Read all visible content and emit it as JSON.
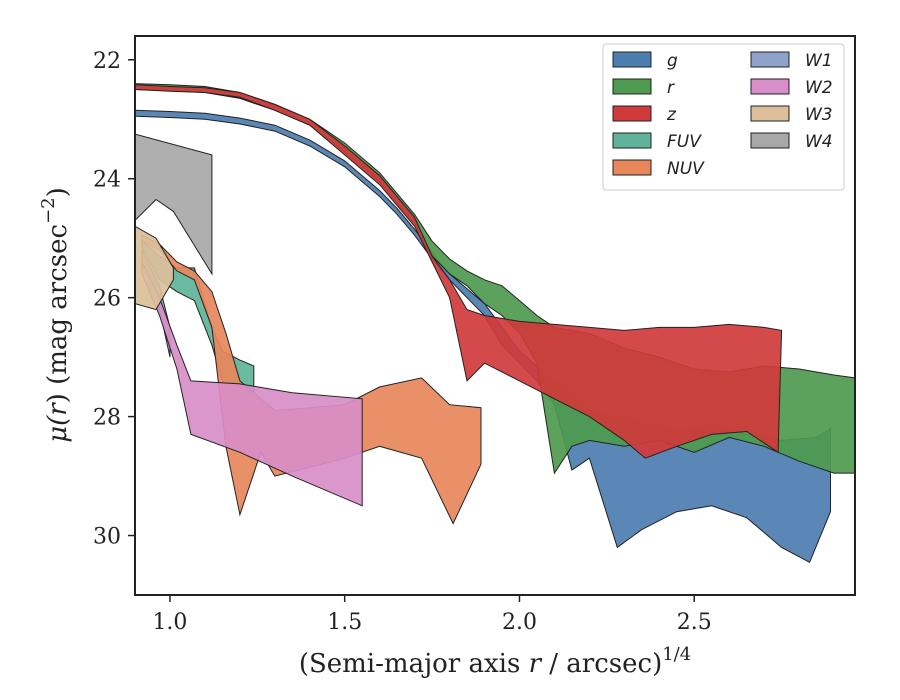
{
  "chart_data": {
    "type": "area",
    "xlabel": {
      "text": "(Semi-major axis ",
      "var": "r",
      "rest": " / arcsec)",
      "sup": "1/4"
    },
    "ylabel": {
      "mu": "μ(",
      "var": "r",
      "rest": ") (mag arcsec",
      "sup": "−2",
      "close": ")"
    },
    "xlim": [
      0.9,
      2.96
    ],
    "ylim": [
      31.0,
      21.6
    ],
    "y_inverted": true,
    "xticks": [
      1.0,
      1.5,
      2.0,
      2.5
    ],
    "xtick_labels": [
      "1.0",
      "1.5",
      "2.0",
      "2.5"
    ],
    "yticks": [
      22,
      24,
      26,
      28,
      30
    ],
    "ytick_labels": [
      "22",
      "24",
      "26",
      "28",
      "30"
    ],
    "legend_position": "top-right",
    "legend_columns": 2,
    "series": [
      {
        "name": "g",
        "color": "#4c7daf",
        "upper": [
          [
            0.9,
            22.85
          ],
          [
            1.0,
            22.87
          ],
          [
            1.1,
            22.9
          ],
          [
            1.2,
            22.98
          ],
          [
            1.3,
            23.1
          ],
          [
            1.4,
            23.35
          ],
          [
            1.5,
            23.7
          ],
          [
            1.6,
            24.2
          ],
          [
            1.65,
            24.5
          ],
          [
            1.7,
            24.85
          ],
          [
            1.75,
            25.25
          ],
          [
            1.8,
            25.6
          ],
          [
            1.85,
            25.85
          ],
          [
            1.9,
            26.1
          ],
          [
            1.95,
            26.5
          ],
          [
            2.0,
            26.9
          ],
          [
            2.05,
            27.15
          ],
          [
            2.1,
            27.4
          ],
          [
            2.15,
            27.6
          ],
          [
            2.2,
            27.9
          ],
          [
            2.28,
            28.0
          ],
          [
            2.35,
            28.1
          ],
          [
            2.45,
            28.25
          ],
          [
            2.55,
            28.15
          ],
          [
            2.65,
            28.3
          ],
          [
            2.75,
            28.4
          ],
          [
            2.85,
            28.35
          ],
          [
            2.89,
            28.2
          ]
        ],
        "lower": [
          [
            0.9,
            22.95
          ],
          [
            1.0,
            22.97
          ],
          [
            1.1,
            23.0
          ],
          [
            1.2,
            23.08
          ],
          [
            1.3,
            23.2
          ],
          [
            1.4,
            23.45
          ],
          [
            1.5,
            23.8
          ],
          [
            1.6,
            24.3
          ],
          [
            1.65,
            24.6
          ],
          [
            1.7,
            24.95
          ],
          [
            1.75,
            25.35
          ],
          [
            1.8,
            25.7
          ],
          [
            1.85,
            26.0
          ],
          [
            1.9,
            26.3
          ],
          [
            1.95,
            26.8
          ],
          [
            2.0,
            27.1
          ],
          [
            2.05,
            27.4
          ],
          [
            2.1,
            27.8
          ],
          [
            2.15,
            28.9
          ],
          [
            2.2,
            28.7
          ],
          [
            2.28,
            30.2
          ],
          [
            2.35,
            29.9
          ],
          [
            2.45,
            29.6
          ],
          [
            2.55,
            29.5
          ],
          [
            2.65,
            29.7
          ],
          [
            2.75,
            30.2
          ],
          [
            2.83,
            30.45
          ],
          [
            2.89,
            29.6
          ]
        ]
      },
      {
        "name": "r",
        "color": "#4e9a4e",
        "upper": [
          [
            0.9,
            22.4
          ],
          [
            1.0,
            22.42
          ],
          [
            1.1,
            22.45
          ],
          [
            1.2,
            22.55
          ],
          [
            1.3,
            22.75
          ],
          [
            1.4,
            23.0
          ],
          [
            1.5,
            23.4
          ],
          [
            1.6,
            23.9
          ],
          [
            1.65,
            24.25
          ],
          [
            1.7,
            24.6
          ],
          [
            1.75,
            25.05
          ],
          [
            1.8,
            25.35
          ],
          [
            1.85,
            25.55
          ],
          [
            1.9,
            25.7
          ],
          [
            1.95,
            25.8
          ],
          [
            2.0,
            26.05
          ],
          [
            2.05,
            26.3
          ],
          [
            2.1,
            26.5
          ],
          [
            2.2,
            26.6
          ],
          [
            2.3,
            26.85
          ],
          [
            2.4,
            27.0
          ],
          [
            2.5,
            27.2
          ],
          [
            2.6,
            27.25
          ],
          [
            2.7,
            27.15
          ],
          [
            2.8,
            27.2
          ],
          [
            2.9,
            27.3
          ],
          [
            2.96,
            27.35
          ]
        ],
        "lower": [
          [
            0.9,
            22.5
          ],
          [
            1.0,
            22.52
          ],
          [
            1.1,
            22.55
          ],
          [
            1.2,
            22.65
          ],
          [
            1.3,
            22.85
          ],
          [
            1.4,
            23.1
          ],
          [
            1.5,
            23.55
          ],
          [
            1.6,
            24.05
          ],
          [
            1.65,
            24.4
          ],
          [
            1.7,
            24.75
          ],
          [
            1.75,
            25.3
          ],
          [
            1.8,
            25.6
          ],
          [
            1.85,
            25.8
          ],
          [
            1.9,
            26.1
          ],
          [
            1.95,
            26.3
          ],
          [
            2.0,
            26.6
          ],
          [
            2.05,
            27.1
          ],
          [
            2.1,
            28.95
          ],
          [
            2.15,
            28.5
          ],
          [
            2.2,
            28.4
          ],
          [
            2.3,
            28.5
          ],
          [
            2.4,
            28.4
          ],
          [
            2.5,
            28.6
          ],
          [
            2.6,
            28.35
          ],
          [
            2.7,
            28.5
          ],
          [
            2.8,
            28.75
          ],
          [
            2.9,
            28.95
          ],
          [
            2.96,
            28.95
          ]
        ]
      },
      {
        "name": "z",
        "color": "#d03a3a",
        "upper": [
          [
            0.9,
            22.42
          ],
          [
            1.0,
            22.45
          ],
          [
            1.1,
            22.47
          ],
          [
            1.2,
            22.55
          ],
          [
            1.3,
            22.75
          ],
          [
            1.4,
            23.0
          ],
          [
            1.5,
            23.45
          ],
          [
            1.6,
            23.95
          ],
          [
            1.65,
            24.3
          ],
          [
            1.7,
            24.65
          ],
          [
            1.75,
            25.3
          ],
          [
            1.8,
            25.7
          ],
          [
            1.85,
            26.2
          ],
          [
            1.9,
            26.3
          ],
          [
            2.0,
            26.4
          ],
          [
            2.1,
            26.45
          ],
          [
            2.2,
            26.5
          ],
          [
            2.3,
            26.55
          ],
          [
            2.4,
            26.5
          ],
          [
            2.5,
            26.5
          ],
          [
            2.6,
            26.45
          ],
          [
            2.7,
            26.5
          ],
          [
            2.75,
            26.55
          ]
        ],
        "lower": [
          [
            0.9,
            22.5
          ],
          [
            1.0,
            22.53
          ],
          [
            1.1,
            22.55
          ],
          [
            1.2,
            22.63
          ],
          [
            1.3,
            22.85
          ],
          [
            1.4,
            23.1
          ],
          [
            1.5,
            23.6
          ],
          [
            1.6,
            24.1
          ],
          [
            1.65,
            24.45
          ],
          [
            1.7,
            24.8
          ],
          [
            1.75,
            25.4
          ],
          [
            1.8,
            26.0
          ],
          [
            1.85,
            27.4
          ],
          [
            1.9,
            27.1
          ],
          [
            2.0,
            27.4
          ],
          [
            2.1,
            27.7
          ],
          [
            2.2,
            28.0
          ],
          [
            2.3,
            28.4
          ],
          [
            2.36,
            28.7
          ],
          [
            2.45,
            28.5
          ],
          [
            2.55,
            28.3
          ],
          [
            2.65,
            28.25
          ],
          [
            2.74,
            28.6
          ]
        ]
      },
      {
        "name": "FUV",
        "color": "#5fb39a",
        "upper": [
          [
            0.92,
            25.05
          ],
          [
            0.97,
            25.3
          ],
          [
            1.02,
            25.5
          ],
          [
            1.07,
            25.5
          ],
          [
            1.12,
            26.5
          ],
          [
            1.15,
            26.9
          ],
          [
            1.2,
            27.05
          ],
          [
            1.24,
            27.15
          ]
        ],
        "lower": [
          [
            0.92,
            25.15
          ],
          [
            0.97,
            25.7
          ],
          [
            1.02,
            25.9
          ],
          [
            1.07,
            26.05
          ],
          [
            1.12,
            26.8
          ],
          [
            1.15,
            27.4
          ],
          [
            1.2,
            27.7
          ],
          [
            1.24,
            27.6
          ]
        ]
      },
      {
        "name": "NUV",
        "color": "#e8875c",
        "upper": [
          [
            0.92,
            24.95
          ],
          [
            0.97,
            25.1
          ],
          [
            1.02,
            25.4
          ],
          [
            1.07,
            25.55
          ],
          [
            1.12,
            25.9
          ],
          [
            1.16,
            26.6
          ],
          [
            1.2,
            27.4
          ],
          [
            1.3,
            27.9
          ],
          [
            1.4,
            27.85
          ],
          [
            1.5,
            27.8
          ],
          [
            1.6,
            27.5
          ],
          [
            1.72,
            27.35
          ],
          [
            1.8,
            27.8
          ],
          [
            1.89,
            27.85
          ]
        ],
        "lower": [
          [
            0.92,
            25.05
          ],
          [
            0.97,
            25.2
          ],
          [
            1.02,
            25.55
          ],
          [
            1.07,
            25.7
          ],
          [
            1.12,
            26.5
          ],
          [
            1.16,
            28.5
          ],
          [
            1.2,
            29.65
          ],
          [
            1.26,
            28.6
          ],
          [
            1.3,
            29.0
          ],
          [
            1.4,
            28.85
          ],
          [
            1.5,
            28.7
          ],
          [
            1.6,
            28.5
          ],
          [
            1.72,
            28.7
          ],
          [
            1.81,
            29.8
          ],
          [
            1.89,
            28.8
          ]
        ]
      },
      {
        "name": "W1",
        "color": "#8fa2c9",
        "upper": [
          [
            0.92,
            25.2
          ],
          [
            0.97,
            25.8
          ],
          [
            1.0,
            26.5
          ]
        ],
        "lower": [
          [
            0.92,
            25.4
          ],
          [
            0.97,
            26.2
          ],
          [
            1.0,
            27.0
          ]
        ]
      },
      {
        "name": "W2",
        "color": "#d88ec8",
        "upper": [
          [
            0.92,
            25.4
          ],
          [
            0.97,
            26.0
          ],
          [
            1.02,
            26.8
          ],
          [
            1.06,
            27.4
          ],
          [
            1.2,
            27.45
          ],
          [
            1.35,
            27.6
          ],
          [
            1.55,
            27.7
          ]
        ],
        "lower": [
          [
            0.92,
            25.6
          ],
          [
            0.97,
            26.3
          ],
          [
            1.02,
            27.2
          ],
          [
            1.06,
            28.3
          ],
          [
            1.2,
            28.6
          ],
          [
            1.35,
            29.0
          ],
          [
            1.55,
            29.5
          ]
        ]
      },
      {
        "name": "W3",
        "color": "#dcbf9a",
        "upper": [
          [
            0.9,
            24.8
          ],
          [
            0.96,
            25.0
          ],
          [
            1.01,
            25.5
          ]
        ],
        "lower": [
          [
            0.9,
            26.1
          ],
          [
            0.96,
            26.2
          ],
          [
            1.01,
            25.7
          ]
        ]
      },
      {
        "name": "W4",
        "color": "#a8a8a8",
        "upper": [
          [
            0.9,
            23.25
          ],
          [
            1.12,
            23.6
          ]
        ],
        "lower": [
          [
            0.9,
            24.7
          ],
          [
            0.96,
            24.35
          ],
          [
            1.01,
            24.55
          ],
          [
            1.12,
            25.6
          ]
        ]
      }
    ]
  }
}
